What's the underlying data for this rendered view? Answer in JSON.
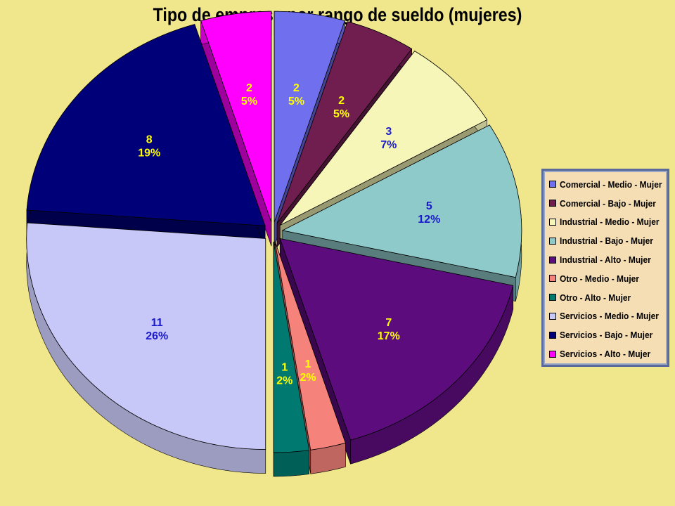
{
  "chart_data": {
    "type": "pie",
    "title": "Tipo de empresa por rango de sueldo (mujeres)",
    "legend_position": "right",
    "background_color": "#f0e68c",
    "slices": [
      {
        "label": "Comercial - Medio - Mujer",
        "value": 2,
        "percent": "5%",
        "color": "#7070ee",
        "text_color": "#ffff00"
      },
      {
        "label": "Comercial - Bajo - Mujer",
        "value": 2,
        "percent": "5%",
        "color": "#701e50",
        "text_color": "#ffff00"
      },
      {
        "label": "Industrial - Medio - Mujer",
        "value": 3,
        "percent": "7%",
        "color": "#f6f6b8",
        "text_color": "#1a1acc"
      },
      {
        "label": "Industrial - Bajo - Mujer",
        "value": 5,
        "percent": "12%",
        "color": "#8fcaca",
        "text_color": "#1a1acc"
      },
      {
        "label": "Industrial - Alto - Mujer",
        "value": 7,
        "percent": "17%",
        "color": "#5c0c7c",
        "text_color": "#ffff00"
      },
      {
        "label": "Otro - Medio - Mujer",
        "value": 1,
        "percent": "2%",
        "color": "#f5837b",
        "text_color": "#ffff00"
      },
      {
        "label": "Otro - Alto - Mujer",
        "value": 1,
        "percent": "2%",
        "color": "#007a70",
        "text_color": "#ffff00"
      },
      {
        "label": "Servicios - Medio - Mujer",
        "value": 11,
        "percent": "26%",
        "color": "#c8c8f8",
        "text_color": "#1a1acc"
      },
      {
        "label": "Servicios - Bajo - Mujer",
        "value": 8,
        "percent": "19%",
        "color": "#000078",
        "text_color": "#ffff00"
      },
      {
        "label": "Servicios - Alto - Mujer",
        "value": 2,
        "percent": "5%",
        "color": "#ff00ff",
        "text_color": "#ffff00"
      }
    ]
  }
}
